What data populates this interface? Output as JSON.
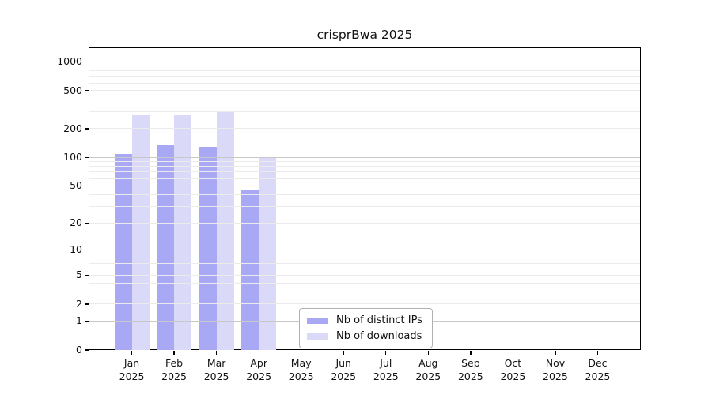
{
  "title": "crisprBwa 2025",
  "colors": {
    "distinct_ips": "#a8a8f4",
    "downloads": "#dadaf8",
    "grid_major": "#c8c8c8",
    "grid_minor": "#ebebeb",
    "axis": "#000000",
    "text": "#111111",
    "legend_border": "#b0b0b0"
  },
  "legend": {
    "items": [
      {
        "label": "Nb of distinct IPs",
        "color_key": "distinct_ips"
      },
      {
        "label": "Nb of downloads",
        "color_key": "downloads"
      }
    ]
  },
  "chart_data": {
    "type": "bar",
    "title": "crisprBwa 2025",
    "xlabel": "",
    "ylabel": "",
    "scale": "log1p",
    "ylim": [
      0,
      1385
    ],
    "grid": "on",
    "legend_position": "bottom-center-inside",
    "categories": [
      "Jan",
      "Feb",
      "Mar",
      "Apr",
      "May",
      "Jun",
      "Jul",
      "Aug",
      "Sep",
      "Oct",
      "Nov",
      "Dec"
    ],
    "category_year": "2025",
    "series": [
      {
        "name": "Nb of distinct IPs",
        "color_key": "distinct_ips",
        "values": [
          108,
          137,
          130,
          45,
          0,
          0,
          0,
          0,
          0,
          0,
          0,
          0
        ]
      },
      {
        "name": "Nb of downloads",
        "color_key": "downloads",
        "values": [
          280,
          274,
          310,
          100,
          0,
          0,
          0,
          0,
          0,
          0,
          0,
          0
        ]
      }
    ],
    "y_ticks": [
      0,
      1,
      2,
      5,
      10,
      20,
      50,
      100,
      200,
      500,
      1000
    ],
    "y_gridlines_major": [
      1,
      10,
      100,
      1000
    ],
    "y_gridlines_minor": [
      2,
      3,
      4,
      5,
      6,
      7,
      8,
      9,
      20,
      30,
      40,
      50,
      60,
      70,
      80,
      90,
      200,
      300,
      400,
      500,
      600,
      700,
      800,
      900
    ]
  }
}
